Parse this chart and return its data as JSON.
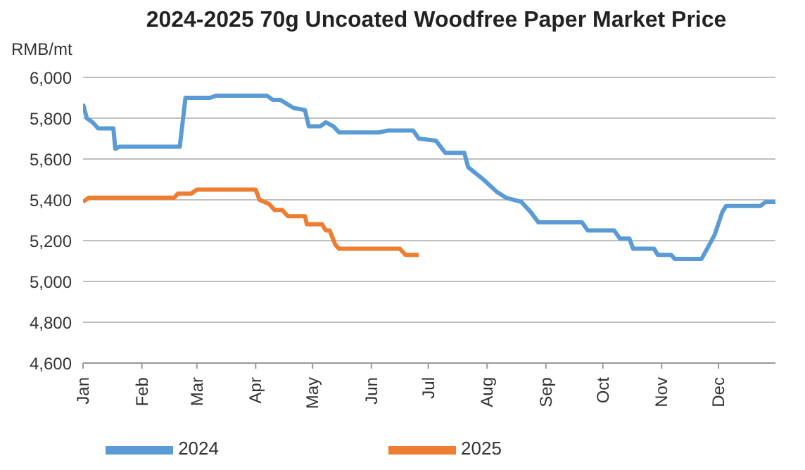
{
  "chart_data": {
    "type": "line",
    "title": "2024-2025 70g Uncoated Woodfree Paper Market Price",
    "ylabel": "RMB/mt",
    "xlim": [
      "--01-01",
      "--12-31"
    ],
    "xticks": [
      {
        "value": "--01-01",
        "label": "Jan"
      },
      {
        "value": "--02-01",
        "label": "Feb"
      },
      {
        "value": "--03-01",
        "label": "Mar"
      },
      {
        "value": "--04-01",
        "label": "Apr"
      },
      {
        "value": "--05-01",
        "label": "May"
      },
      {
        "value": "--06-01",
        "label": "Jun"
      },
      {
        "value": "--07-01",
        "label": "Jul"
      },
      {
        "value": "--08-01",
        "label": "Aug"
      },
      {
        "value": "--09-01",
        "label": "Sep"
      },
      {
        "value": "--10-01",
        "label": "Oct"
      },
      {
        "value": "--11-01",
        "label": "Nov"
      },
      {
        "value": "--12-01",
        "label": "Dec"
      }
    ],
    "ylim": [
      4600,
      6000
    ],
    "yticks": [
      {
        "value": 4600,
        "label": "4,600"
      },
      {
        "value": 4800,
        "label": "4,800"
      },
      {
        "value": 5000,
        "label": "5,000"
      },
      {
        "value": 5200,
        "label": "5,200"
      },
      {
        "value": 5400,
        "label": "5,400"
      },
      {
        "value": 5600,
        "label": "5,600"
      },
      {
        "value": 5800,
        "label": "5,800"
      },
      {
        "value": 6000,
        "label": "6,000"
      }
    ],
    "grid": "y",
    "legend": "bottom",
    "marker": "none",
    "line_style": "solid",
    "series": [
      {
        "name": "2024",
        "color": "#5b9bd5",
        "x": [
          "--01-01",
          "--01-03",
          "--01-06",
          "--01-09",
          "--01-17",
          "--01-18",
          "--01-20",
          "--02-21",
          "--02-24",
          "--03-08",
          "--03-11",
          "--04-07",
          "--04-10",
          "--04-14",
          "--04-21",
          "--04-27",
          "--04-29",
          "--05-05",
          "--05-08",
          "--05-12",
          "--05-15",
          "--06-05",
          "--06-10",
          "--06-23",
          "--06-26",
          "--07-05",
          "--07-10",
          "--07-20",
          "--07-22",
          "--07-30",
          "--08-06",
          "--08-11",
          "--08-19",
          "--08-24",
          "--08-28",
          "--09-20",
          "--09-23",
          "--10-07",
          "--10-10",
          "--10-15",
          "--10-17",
          "--10-28",
          "--10-30",
          "--11-06",
          "--11-08",
          "--11-22",
          "--11-25",
          "--11-29",
          "--12-03",
          "--12-05",
          "--12-23",
          "--12-26",
          "--12-31"
        ],
        "values": [
          5870,
          5800,
          5780,
          5750,
          5750,
          5650,
          5660,
          5660,
          5900,
          5900,
          5910,
          5910,
          5890,
          5890,
          5850,
          5840,
          5760,
          5760,
          5780,
          5760,
          5730,
          5730,
          5740,
          5740,
          5700,
          5690,
          5630,
          5630,
          5560,
          5500,
          5440,
          5410,
          5390,
          5340,
          5290,
          5290,
          5250,
          5250,
          5210,
          5210,
          5160,
          5160,
          5130,
          5130,
          5110,
          5110,
          5160,
          5230,
          5340,
          5370,
          5370,
          5390,
          5390
        ]
      },
      {
        "name": "2025",
        "color": "#ed7d31",
        "x": [
          "--01-01",
          "--01-04",
          "--02-18",
          "--02-20",
          "--02-27",
          "--03-01",
          "--04-01",
          "--04-03",
          "--04-08",
          "--04-11",
          "--04-15",
          "--04-18",
          "--04-27",
          "--04-28",
          "--05-06",
          "--05-08",
          "--05-10",
          "--05-13",
          "--05-15",
          "--06-16",
          "--06-19",
          "--06-26"
        ],
        "values": [
          5390,
          5410,
          5410,
          5430,
          5430,
          5450,
          5450,
          5400,
          5380,
          5350,
          5350,
          5320,
          5320,
          5280,
          5280,
          5250,
          5250,
          5180,
          5160,
          5160,
          5130,
          5130
        ]
      }
    ]
  }
}
